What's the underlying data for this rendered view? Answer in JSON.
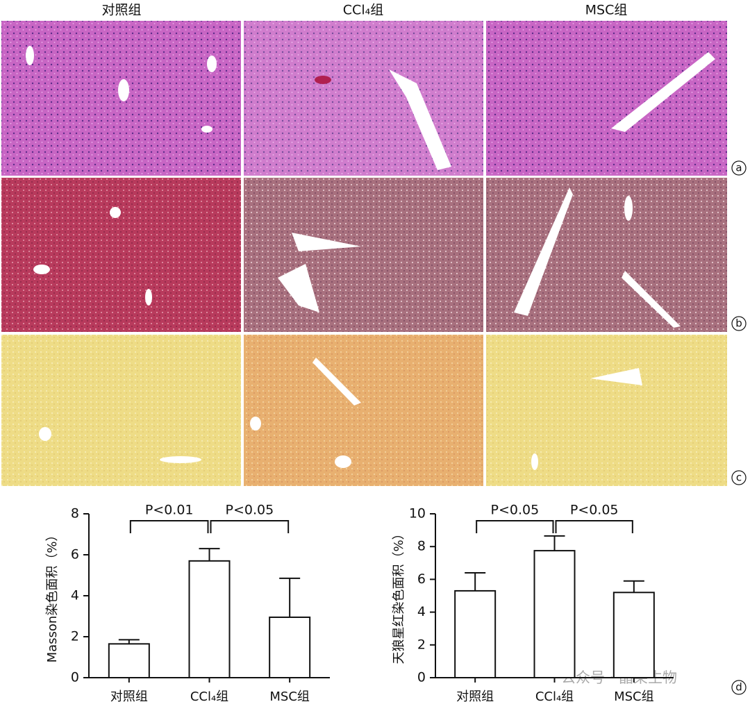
{
  "figure": {
    "columns": [
      "对照组",
      "CCl₄组",
      "MSC组"
    ],
    "panels": [
      "a",
      "b",
      "c",
      "d"
    ],
    "watermark": "公众号 · 晶莱生物"
  },
  "chart_data": [
    {
      "type": "bar",
      "ylabel": "Masson染色面积（%）",
      "categories": [
        "对照组",
        "CCl₄组",
        "MSC组"
      ],
      "values": [
        1.65,
        5.7,
        2.95
      ],
      "errors": [
        0.2,
        0.6,
        1.9
      ],
      "color": "#ffffff",
      "ylim": [
        0,
        8
      ],
      "yticks": [
        0,
        2,
        4,
        6,
        8
      ],
      "annotations": [
        "P<0.01",
        "P<0.05"
      ]
    },
    {
      "type": "bar",
      "ylabel": "天狼星红染色面积（%）",
      "categories": [
        "对照组",
        "CCl₄组",
        "MSC组"
      ],
      "values": [
        5.3,
        7.75,
        5.2
      ],
      "errors": [
        1.1,
        0.9,
        0.7
      ],
      "color": "#ffffff",
      "ylim": [
        0,
        10
      ],
      "yticks": [
        0,
        2,
        4,
        6,
        8,
        10
      ],
      "annotations": [
        "P<0.05",
        "P<0.05"
      ]
    }
  ]
}
